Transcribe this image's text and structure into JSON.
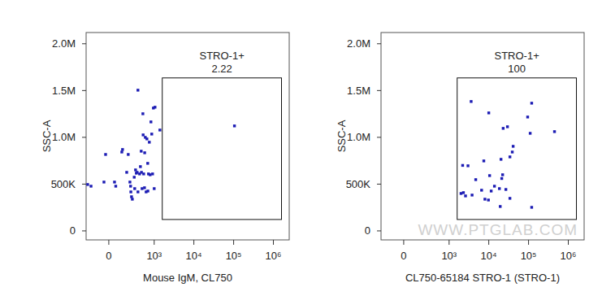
{
  "chart_data": [
    {
      "type": "scatter",
      "color": "#1c1cb4",
      "marker": "square",
      "log": "x",
      "x_label": "Mouse IgM, CL750",
      "y_label": "SSC-A",
      "xlim": [
        -250,
        2500000
      ],
      "ylim": [
        -96000,
        2120000
      ],
      "xticks": [
        0,
        {
          "value": 1000,
          "label": "10³"
        },
        {
          "value": 10000,
          "label": "10⁴"
        },
        {
          "value": 100000,
          "label": "10⁵"
        },
        {
          "value": 1000000,
          "label": "10⁶"
        }
      ],
      "yticks": [
        0,
        {
          "value": 500000,
          "label": "500K"
        },
        {
          "value": 1000000,
          "label": "1.0M"
        },
        {
          "value": 1500000,
          "label": "1.5M"
        },
        {
          "value": 2000000,
          "label": "2.0M"
        }
      ],
      "gate": {
        "label": "STRO-1+",
        "value": 2.22,
        "xlim": [
          1600,
          1600000
        ],
        "ylim": [
          122000,
          1635000
        ]
      },
      "x": [
        -225,
        -177,
        -27,
        -41,
        49,
        60,
        120,
        128,
        200,
        179,
        225,
        236,
        240,
        251,
        265,
        309,
        300,
        326,
        342,
        361,
        379,
        379,
        419,
        441,
        463,
        470,
        487,
        512,
        520,
        537,
        564,
        570,
        592,
        621,
        651,
        683,
        690,
        715,
        751,
        787,
        826,
        866,
        909,
        954,
        1000,
        1049,
        1393,
        105000
      ],
      "y": [
        496000,
        478000,
        817000,
        522000,
        522000,
        478000,
        843000,
        870000,
        817000,
        626000,
        522000,
        478000,
        417000,
        365000,
        339000,
        452000,
        574000,
        652000,
        617000,
        626000,
        417000,
        1504000,
        609000,
        687000,
        852000,
        626000,
        452000,
        1252000,
        1026000,
        609000,
        461000,
        835000,
        1000000,
        417000,
        983000,
        722000,
        426000,
        609000,
        948000,
        600000,
        1165000,
        1035000,
        609000,
        1313000,
        452000,
        1322000,
        1078000,
        1122000
      ]
    },
    {
      "type": "scatter",
      "color": "#1c1cb4",
      "marker": "square",
      "log": "x",
      "x_label": "CL750-65184 STRO-1 (STRO-1)",
      "y_label": "SSC-A",
      "watermark": "WWW.PTGLAB.COM",
      "xlim": [
        -250,
        2500000
      ],
      "ylim": [
        -96000,
        2120000
      ],
      "xticks": [
        0,
        {
          "value": 1000,
          "label": "10³"
        },
        {
          "value": 10000,
          "label": "10⁴"
        },
        {
          "value": 100000,
          "label": "10⁵"
        },
        {
          "value": 1000000,
          "label": "10⁶"
        }
      ],
      "yticks": [
        0,
        {
          "value": 500000,
          "label": "500K"
        },
        {
          "value": 1000000,
          "label": "1.0M"
        },
        {
          "value": 1500000,
          "label": "1.5M"
        },
        {
          "value": 2000000,
          "label": "2.0M"
        }
      ],
      "gate": {
        "label": "STRO-1+",
        "value": 100,
        "xlim": [
          1600,
          1600000
        ],
        "ylim": [
          122000,
          1635000
        ]
      },
      "x": [
        3600,
        10000,
        120000,
        95000,
        29500,
        450000,
        110000,
        23000,
        41000,
        39000,
        3000,
        7500,
        20300,
        34000,
        10500,
        22300,
        4700,
        13900,
        18500,
        26900,
        6600,
        11500,
        2300,
        3800,
        2000,
        2600,
        8000,
        34000,
        9800,
        19400,
        21200,
        2200,
        120000
      ],
      "y": [
        1383000,
        1261000,
        1365000,
        1217000,
        1113000,
        1061000,
        1043000,
        1096000,
        904000,
        843000,
        696000,
        748000,
        765000,
        791000,
        591000,
        600000,
        548000,
        478000,
        452000,
        443000,
        435000,
        426000,
        409000,
        383000,
        400000,
        374000,
        339000,
        348000,
        330000,
        261000,
        560000,
        700000,
        252000
      ]
    }
  ]
}
